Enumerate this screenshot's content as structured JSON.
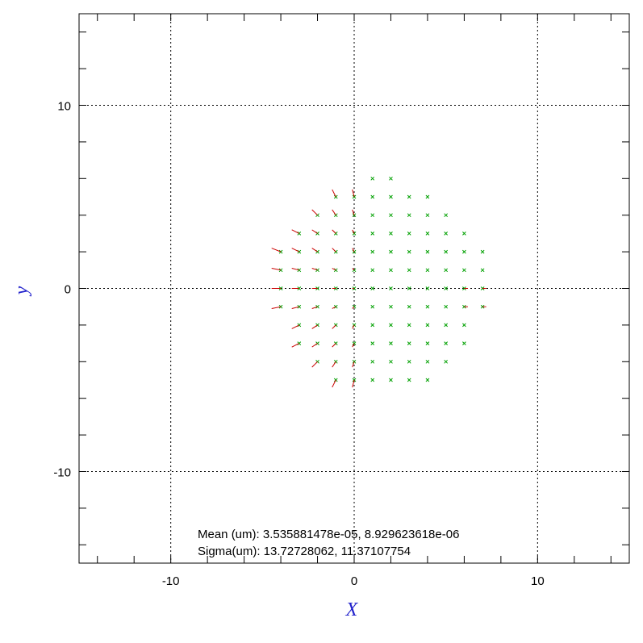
{
  "chart_data": {
    "type": "quiver",
    "xlabel": "X",
    "ylabel": "y",
    "xlim": [
      -15,
      15
    ],
    "ylim": [
      -15,
      15
    ],
    "xticks": [
      -10,
      0,
      10
    ],
    "yticks": [
      -10,
      0,
      10
    ],
    "xminorticks": [
      -14,
      -12,
      -10,
      -8,
      -6,
      -4,
      -2,
      0,
      2,
      4,
      6,
      8,
      10,
      12,
      14
    ],
    "yminorticks": [
      -14,
      -12,
      -10,
      -8,
      -6,
      -4,
      -2,
      0,
      2,
      4,
      6,
      8,
      10,
      12,
      14
    ],
    "grid": true,
    "point_color": "#00a000",
    "arrow_color": "#cc0000",
    "annotations": [
      "Mean (um): 3.535881478e-05, 8.929623618e-06",
      "Sigma(um): 13.72728062, 11.37107754"
    ],
    "x": [
      1,
      2,
      -1,
      0,
      1,
      2,
      3,
      4,
      -2,
      -1,
      0,
      1,
      2,
      3,
      4,
      5,
      -3,
      -2,
      -1,
      0,
      1,
      2,
      3,
      4,
      5,
      6,
      -4,
      -3,
      -2,
      -1,
      0,
      1,
      2,
      3,
      4,
      5,
      6,
      7,
      -4,
      -3,
      -2,
      -1,
      0,
      1,
      2,
      3,
      4,
      5,
      6,
      7,
      -4,
      -3,
      -2,
      -1,
      0,
      1,
      2,
      3,
      4,
      5,
      6,
      7,
      -4,
      -3,
      -2,
      -1,
      0,
      1,
      2,
      3,
      4,
      5,
      6,
      7,
      -3,
      -2,
      -1,
      0,
      1,
      2,
      3,
      4,
      5,
      6,
      -3,
      -2,
      -1,
      0,
      1,
      2,
      3,
      4,
      5,
      6,
      -2,
      -1,
      0,
      1,
      2,
      3,
      4,
      5,
      -1,
      0,
      1,
      2,
      3,
      4
    ],
    "y": [
      6,
      6,
      5,
      5,
      5,
      5,
      5,
      5,
      4,
      4,
      4,
      4,
      4,
      4,
      4,
      4,
      3,
      3,
      3,
      3,
      3,
      3,
      3,
      3,
      3,
      3,
      2,
      2,
      2,
      2,
      2,
      2,
      2,
      2,
      2,
      2,
      2,
      2,
      1,
      1,
      1,
      1,
      1,
      1,
      1,
      1,
      1,
      1,
      1,
      1,
      0,
      0,
      0,
      0,
      0,
      0,
      0,
      0,
      0,
      0,
      0,
      0,
      -1,
      -1,
      -1,
      -1,
      -1,
      -1,
      -1,
      -1,
      -1,
      -1,
      -1,
      -1,
      -2,
      -2,
      -2,
      -2,
      -2,
      -2,
      -2,
      -2,
      -2,
      -2,
      -3,
      -3,
      -3,
      -3,
      -3,
      -3,
      -3,
      -3,
      -3,
      -3,
      -4,
      -4,
      -4,
      -4,
      -4,
      -4,
      -4,
      -4,
      -5,
      -5,
      -5,
      -5,
      -5,
      -5
    ],
    "dx": [
      0,
      0,
      -0.2,
      -0.1,
      0,
      0,
      0,
      0,
      -0.3,
      -0.2,
      -0.1,
      0,
      0,
      0,
      0,
      0,
      -0.4,
      -0.3,
      -0.2,
      -0.1,
      0,
      0,
      0,
      0,
      0,
      0,
      -0.5,
      -0.4,
      -0.3,
      -0.2,
      -0.1,
      0,
      0,
      0,
      0,
      0,
      0,
      0,
      -0.5,
      -0.4,
      -0.3,
      -0.2,
      -0.1,
      0,
      0,
      0,
      0,
      0,
      0,
      0,
      -0.5,
      -0.4,
      -0.3,
      -0.2,
      -0.1,
      0,
      0,
      0,
      0,
      0,
      0.2,
      0.2,
      -0.5,
      -0.4,
      -0.3,
      -0.2,
      -0.1,
      0,
      0,
      0,
      0,
      0,
      0.2,
      0.2,
      -0.4,
      -0.3,
      -0.2,
      -0.1,
      0,
      0,
      0,
      0,
      0,
      0,
      -0.4,
      -0.3,
      -0.2,
      -0.1,
      0,
      0,
      0,
      0,
      0,
      0,
      -0.3,
      -0.2,
      -0.1,
      0,
      0,
      0,
      0,
      0,
      -0.2,
      -0.1,
      0,
      0,
      0,
      0
    ],
    "dy": [
      0,
      0,
      0.4,
      0.4,
      0,
      0,
      0,
      0,
      0.3,
      0.3,
      0.3,
      0,
      0,
      0,
      0,
      0,
      0.2,
      0.2,
      0.2,
      0.2,
      0,
      0,
      0,
      0,
      0,
      0,
      0.2,
      0.2,
      0.2,
      0.2,
      0.2,
      0,
      0,
      0,
      0,
      0,
      0,
      0,
      0.1,
      0.1,
      0.1,
      0.1,
      0.1,
      0,
      0,
      0,
      0,
      0,
      0,
      0,
      0,
      0,
      0,
      0,
      0,
      0,
      0,
      0,
      0,
      0,
      0,
      0,
      -0.1,
      -0.1,
      -0.1,
      -0.1,
      -0.1,
      0,
      0,
      0,
      0,
      0,
      0,
      0,
      -0.2,
      -0.2,
      -0.2,
      -0.2,
      0,
      0,
      0,
      0,
      0,
      0,
      -0.2,
      -0.2,
      -0.2,
      -0.2,
      0,
      0,
      0,
      0,
      0,
      0,
      -0.3,
      -0.3,
      -0.3,
      0,
      0,
      0,
      0,
      0,
      -0.4,
      -0.4,
      0,
      0,
      0,
      0
    ]
  }
}
